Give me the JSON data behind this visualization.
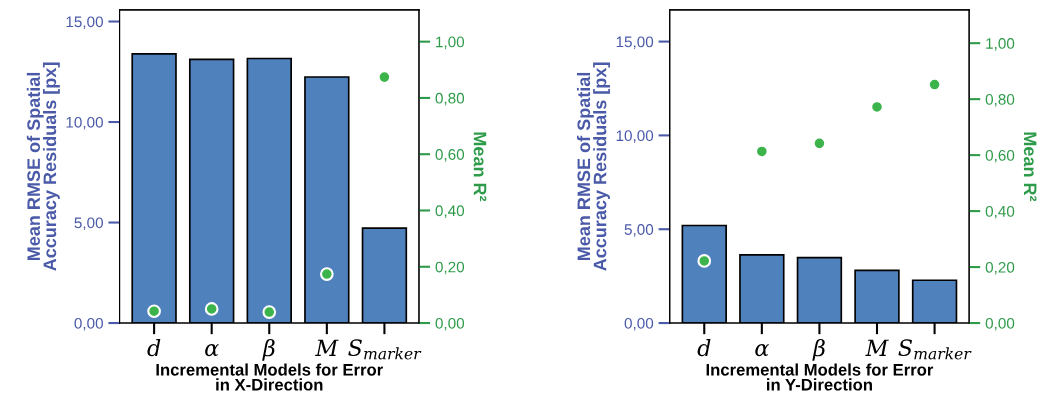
{
  "chart_data": [
    {
      "type": "bar",
      "xlabel": "Incremental Models for Error\nin X-Direction",
      "ylabel": "Mean RMSE of Spatial\nAccuracy Residuals [px]",
      "y2label": "Mean R²",
      "categories": [
        "d",
        "α",
        "β",
        "M",
        "S$_{marker}$"
      ],
      "series": [
        {
          "color": "#4f81bd",
          "values": [
            13.39,
            13.12,
            13.16,
            12.24,
            4.72
          ]
        },
        {
          "type": "scatter",
          "axis": "y2",
          "color": "#3cb44b",
          "marker": "circle",
          "values": [
            0.042,
            0.05,
            0.039,
            0.174,
            0.874
          ]
        }
      ],
      "ylim": [
        0,
        15.58
      ],
      "yticks": [
        {
          "value": 0,
          "label": "0,00"
        },
        {
          "value": 5,
          "label": "5,00"
        },
        {
          "value": 10,
          "label": "10,00"
        },
        {
          "value": 15,
          "label": "15,00"
        }
      ],
      "y2lim": [
        0,
        1.113
      ],
      "y2ticks": [
        {
          "value": 0,
          "label": "0,00"
        },
        {
          "value": 0.2,
          "label": "0,20"
        },
        {
          "value": 0.4,
          "label": "0,40"
        },
        {
          "value": 0.6,
          "label": "0,60"
        },
        {
          "value": 0.8,
          "label": "0,80"
        },
        {
          "value": 1,
          "label": "1,00"
        }
      ]
    },
    {
      "type": "bar",
      "xlabel": "Incremental Models for Error\nin Y-Direction",
      "ylabel": "Mean RMSE of Spatial\nAccuracy Residuals [px]",
      "y2label": "Mean R²",
      "categories": [
        "d",
        "α",
        "β",
        "M",
        "S$_{marker}$"
      ],
      "series": [
        {
          "color": "#4f81bd",
          "values": [
            5.2,
            3.63,
            3.49,
            2.81,
            2.28
          ]
        },
        {
          "type": "scatter",
          "axis": "y2",
          "color": "#3cb44b",
          "marker": "circle",
          "values": [
            0.222,
            0.613,
            0.642,
            0.772,
            0.852
          ]
        }
      ],
      "ylim": [
        0,
        16.69
      ],
      "yticks": [
        {
          "value": 0,
          "label": "0,00"
        },
        {
          "value": 5,
          "label": "5,00"
        },
        {
          "value": 10,
          "label": "10,00"
        },
        {
          "value": 15,
          "label": "15,00"
        }
      ],
      "y2lim": [
        0,
        1.119
      ],
      "y2ticks": [
        {
          "value": 0,
          "label": "0,00"
        },
        {
          "value": 0.2,
          "label": "0,20"
        },
        {
          "value": 0.4,
          "label": "0,40"
        },
        {
          "value": 0.6,
          "label": "0,60"
        },
        {
          "value": 0.8,
          "label": "0,80"
        },
        {
          "value": 1,
          "label": "1,00"
        }
      ]
    }
  ]
}
